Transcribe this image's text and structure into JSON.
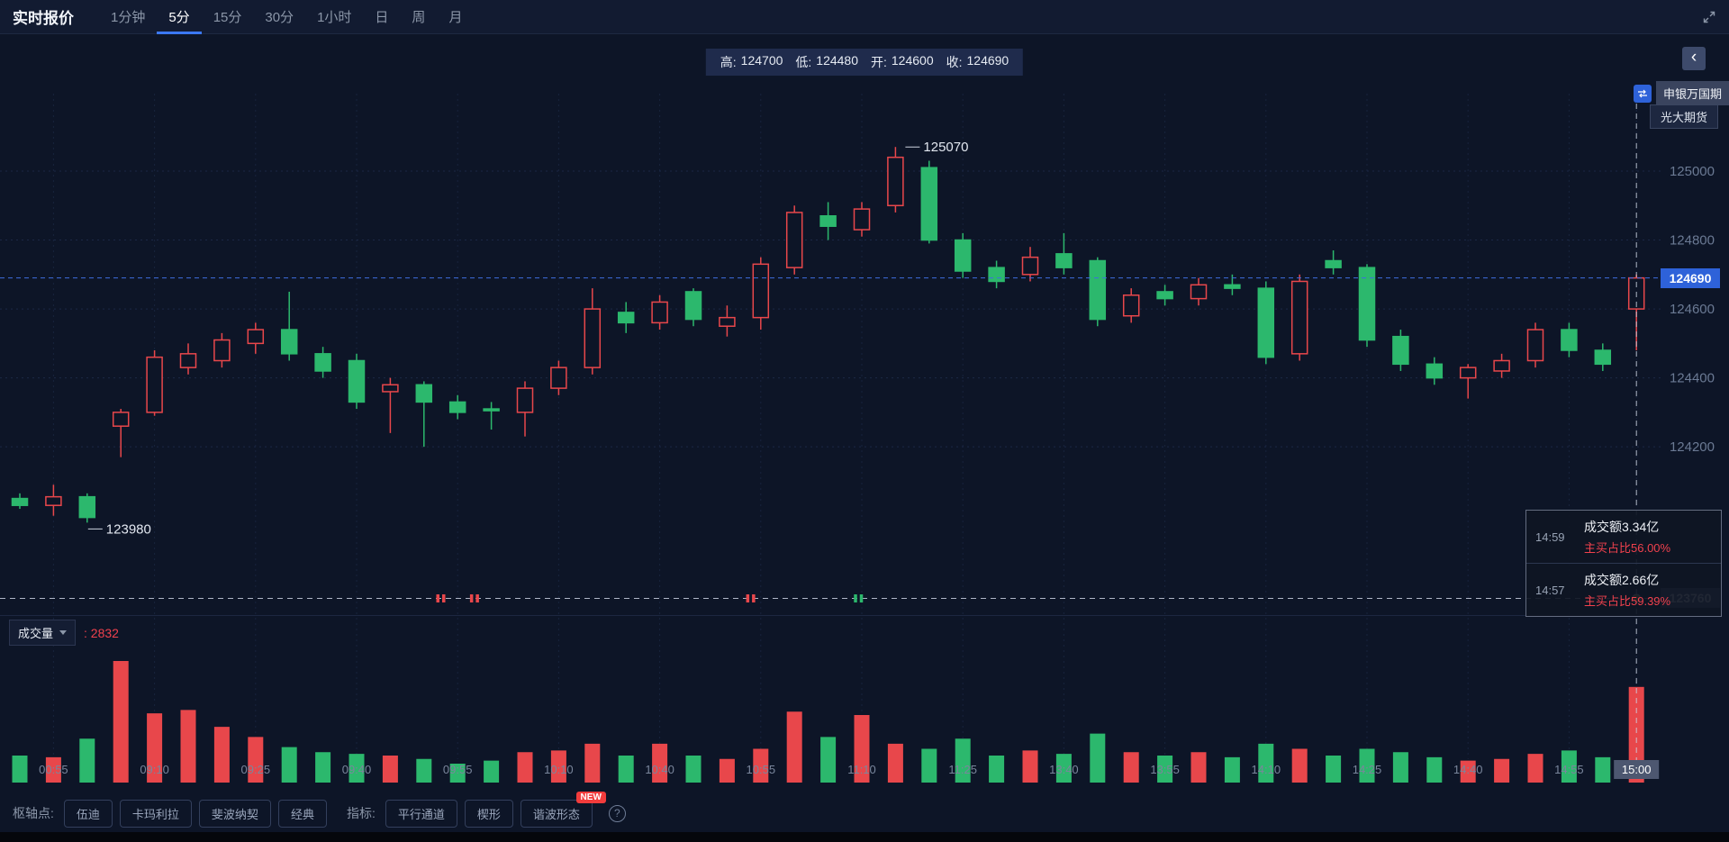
{
  "header": {
    "title": "实时报价",
    "tabs": [
      {
        "label": "1分钟",
        "active": false
      },
      {
        "label": "5分",
        "active": true
      },
      {
        "label": "15分",
        "active": false
      },
      {
        "label": "30分",
        "active": false
      },
      {
        "label": "1小时",
        "active": false
      },
      {
        "label": "日",
        "active": false
      },
      {
        "label": "周",
        "active": false
      },
      {
        "label": "月",
        "active": false
      }
    ]
  },
  "ohlc": [
    {
      "label": "高:",
      "value": "124700"
    },
    {
      "label": "低:",
      "value": "124480"
    },
    {
      "label": "开:",
      "value": "124600"
    },
    {
      "label": "收:",
      "value": "124690"
    }
  ],
  "side": {
    "collapse_icon": "‹",
    "broker1": "申银万国期",
    "broker2": "光大期货"
  },
  "price_axis": {
    "current": "124690",
    "crosshair": "123760"
  },
  "tooltip": {
    "rows": [
      {
        "time": "14:59",
        "amount": "成交额3.34亿",
        "ratio": "主买占比56.00%"
      },
      {
        "time": "14:57",
        "amount": "成交额2.66亿",
        "ratio": "主买占比59.39%"
      }
    ]
  },
  "volume": {
    "label": "成交量",
    "value": ": 2832"
  },
  "footer": {
    "pivot_label": "枢轴点:",
    "pivot_buttons": [
      "伍迪",
      "卡玛利拉",
      "斐波纳契",
      "经典"
    ],
    "indicator_label": "指标:",
    "indicator_buttons": [
      "平行通道",
      "楔形",
      "谐波形态"
    ],
    "new_badge": "NEW",
    "help": "?"
  },
  "chart_data": {
    "type": "candlestick+volume",
    "timeframe": "5分",
    "colors": {
      "up": "#e8474b",
      "down": "#2cb86d",
      "current_price_line": "#3e6de0"
    },
    "y_ticks": [
      125000,
      124800,
      124600,
      124400,
      124200
    ],
    "current_price": 124690,
    "crosshair_price": 123760,
    "current_volume": 2832,
    "high_annotation": {
      "i": 26,
      "price": 125070
    },
    "low_annotation": {
      "i": 2,
      "price": 123980
    },
    "last_candle_ohlc": {
      "open": 124600,
      "high": 124700,
      "low": 124480,
      "close": 124690
    },
    "candles": [
      [
        124050,
        124065,
        124020,
        124030,
        800
      ],
      [
        124030,
        124090,
        124000,
        124055,
        750
      ],
      [
        124055,
        124065,
        123980,
        123995,
        1300
      ],
      [
        124260,
        124310,
        124170,
        124300,
        3600
      ],
      [
        124300,
        124480,
        124290,
        124460,
        2050
      ],
      [
        124430,
        124500,
        124410,
        124470,
        2150
      ],
      [
        124450,
        124530,
        124430,
        124510,
        1650
      ],
      [
        124500,
        124560,
        124470,
        124540,
        1350
      ],
      [
        124540,
        124650,
        124450,
        124470,
        1050
      ],
      [
        124470,
        124490,
        124400,
        124420,
        900
      ],
      [
        124450,
        124470,
        124310,
        124330,
        850
      ],
      [
        124360,
        124400,
        124240,
        124380,
        800
      ],
      [
        124380,
        124390,
        124200,
        124330,
        700
      ],
      [
        124330,
        124350,
        124280,
        124300,
        560
      ],
      [
        124310,
        124330,
        124250,
        124305,
        650
      ],
      [
        124300,
        124390,
        124230,
        124370,
        900
      ],
      [
        124370,
        124450,
        124350,
        124430,
        950
      ],
      [
        124430,
        124660,
        124410,
        124600,
        1150
      ],
      [
        124590,
        124620,
        124530,
        124560,
        800
      ],
      [
        124560,
        124640,
        124540,
        124620,
        1150
      ],
      [
        124650,
        124660,
        124550,
        124570,
        800
      ],
      [
        124550,
        124610,
        124520,
        124575,
        700
      ],
      [
        124575,
        124750,
        124540,
        124730,
        1000
      ],
      [
        124720,
        124900,
        124700,
        124880,
        2100
      ],
      [
        124870,
        124910,
        124800,
        124840,
        1350
      ],
      [
        124830,
        124910,
        124810,
        124890,
        2000
      ],
      [
        124900,
        125070,
        124880,
        125040,
        1150
      ],
      [
        125010,
        125030,
        124790,
        124800,
        1000
      ],
      [
        124800,
        124820,
        124690,
        124710,
        1300
      ],
      [
        124720,
        124740,
        124660,
        124680,
        800
      ],
      [
        124700,
        124780,
        124680,
        124750,
        950
      ],
      [
        124760,
        124820,
        124700,
        124720,
        850
      ],
      [
        124740,
        124750,
        124550,
        124570,
        1450
      ],
      [
        124580,
        124660,
        124560,
        124640,
        900
      ],
      [
        124650,
        124670,
        124610,
        124630,
        800
      ],
      [
        124630,
        124690,
        124610,
        124670,
        900
      ],
      [
        124670,
        124700,
        124640,
        124660,
        750
      ],
      [
        124660,
        124680,
        124440,
        124460,
        1150
      ],
      [
        124470,
        124700,
        124450,
        124680,
        1000
      ],
      [
        124740,
        124770,
        124700,
        124720,
        800
      ],
      [
        124720,
        124730,
        124490,
        124510,
        1000
      ],
      [
        124520,
        124540,
        124420,
        124440,
        900
      ],
      [
        124440,
        124460,
        124380,
        124400,
        750
      ],
      [
        124400,
        124440,
        124340,
        124430,
        650
      ],
      [
        124420,
        124470,
        124400,
        124450,
        700
      ],
      [
        124450,
        124560,
        124430,
        124540,
        850
      ],
      [
        124540,
        124560,
        124460,
        124480,
        950
      ],
      [
        124480,
        124500,
        124420,
        124440,
        750
      ],
      [
        124600,
        124700,
        124480,
        124690,
        2832
      ]
    ],
    "x_labels": [
      {
        "i": 1,
        "t": "00:55"
      },
      {
        "i": 4,
        "t": "09:10"
      },
      {
        "i": 7,
        "t": "09:25"
      },
      {
        "i": 10,
        "t": "09:40"
      },
      {
        "i": 13,
        "t": "09:55"
      },
      {
        "i": 16,
        "t": "10:10"
      },
      {
        "i": 19,
        "t": "10:40"
      },
      {
        "i": 22,
        "t": "10:55"
      },
      {
        "i": 25,
        "t": "11:10"
      },
      {
        "i": 28,
        "t": "11:25"
      },
      {
        "i": 31,
        "t": "13:40"
      },
      {
        "i": 34,
        "t": "13:55"
      },
      {
        "i": 37,
        "t": "14:10"
      },
      {
        "i": 40,
        "t": "14:25"
      },
      {
        "i": 43,
        "t": "14:40"
      },
      {
        "i": 46,
        "t": "14:55"
      },
      {
        "i": 48,
        "t": "15:00",
        "hl": true
      }
    ],
    "signal_markers": [
      {
        "i": 12.5,
        "dir": "up"
      },
      {
        "i": 13.5,
        "dir": "up"
      },
      {
        "i": 21.7,
        "dir": "up"
      },
      {
        "i": 24.9,
        "dir": "down"
      }
    ]
  }
}
